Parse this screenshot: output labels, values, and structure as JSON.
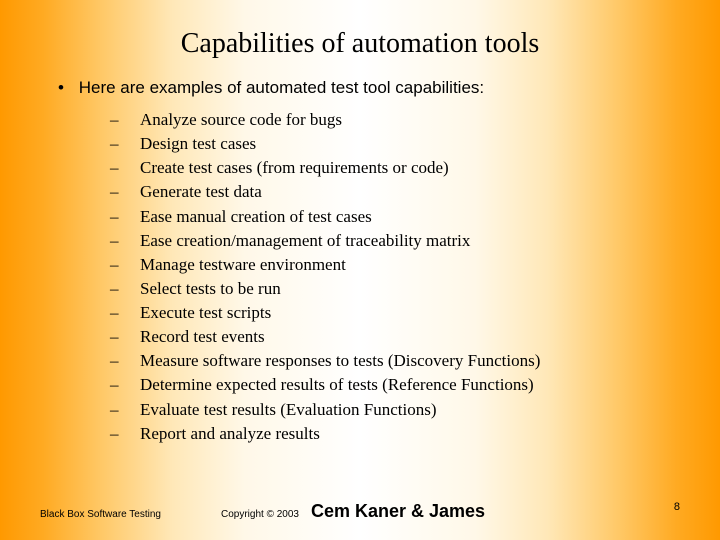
{
  "title": "Capabilities of automation tools",
  "lead_bullet": "•",
  "lead_text": "Here are examples of automated test tool capabilities:",
  "dash": "–",
  "items": [
    "Analyze source code for bugs",
    "Design test cases",
    "Create test cases (from requirements or code)",
    "Generate test data",
    "Ease manual creation of test cases",
    "Ease creation/management of traceability matrix",
    "Manage testware environment",
    "Select tests to be run",
    "Execute test scripts",
    "Record test events",
    "Measure software responses to tests (Discovery Functions)",
    "Determine expected results of tests (Reference Functions)",
    "Evaluate test results (Evaluation Functions)",
    "Report and analyze results"
  ],
  "footer": {
    "left": "Black Box Software Testing",
    "copyright": "Copyright ©",
    "year": "2003",
    "author": "Cem Kaner & James"
  },
  "page_number": "8",
  "colors": {
    "text": "#000000",
    "bg_edge": "#ff9900",
    "bg_center": "#ffffff"
  },
  "typography": {
    "title_font": "Times New Roman",
    "title_size_pt": 21,
    "body_font": "Times New Roman",
    "body_size_pt": 13,
    "lead_font": "Arial",
    "lead_size_pt": 13,
    "footer_small_pt": 8,
    "footer_author_pt": 14
  }
}
